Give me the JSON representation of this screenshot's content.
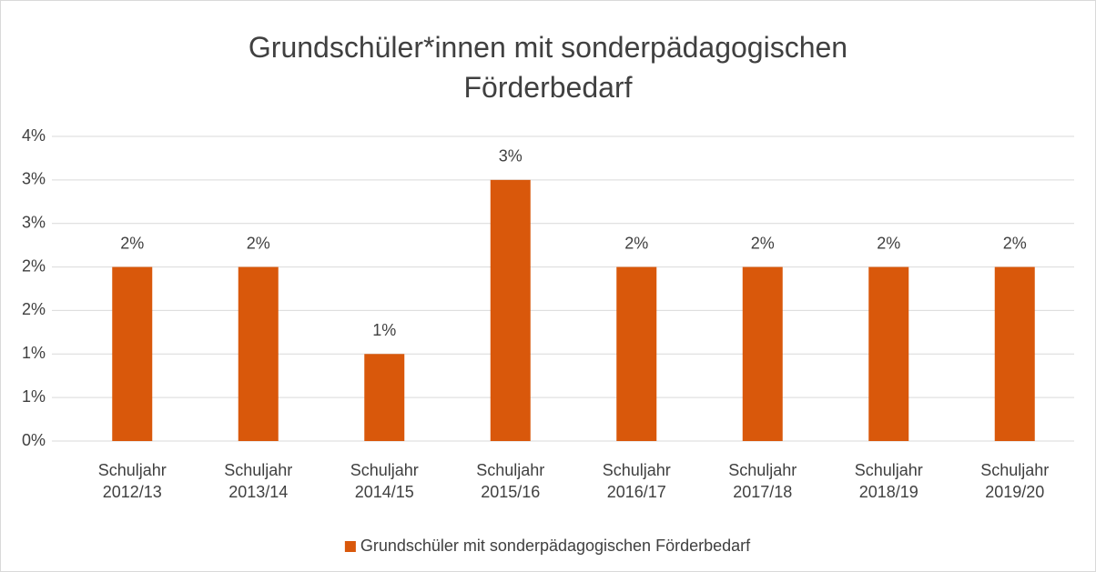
{
  "chart_data": {
    "type": "bar",
    "title": "Grundschüler*innen mit sonderpädagogischen Förderbedarf",
    "categories": [
      "Schuljahr 2012/13",
      "Schuljahr 2013/14",
      "Schuljahr 2014/15",
      "Schuljahr 2015/16",
      "Schuljahr 2016/17",
      "Schuljahr 2017/18",
      "Schuljahr 2018/19",
      "Schuljahr 2019/20"
    ],
    "series": [
      {
        "name": "Grundschüler mit sonderpädagogischen Förderbedarf",
        "color": "#d9580b",
        "values": [
          2,
          2,
          1,
          3,
          2,
          2,
          2,
          2
        ],
        "value_labels": [
          "2%",
          "2%",
          "1%",
          "3%",
          "2%",
          "2%",
          "2%",
          "2%"
        ]
      }
    ],
    "ylim": [
      0,
      3.5
    ],
    "yticks": [
      {
        "value": 0,
        "label": "0%"
      },
      {
        "value": 0.5,
        "label": "1%"
      },
      {
        "value": 1,
        "label": "1%"
      },
      {
        "value": 1.5,
        "label": "2%"
      },
      {
        "value": 2,
        "label": "2%"
      },
      {
        "value": 2.5,
        "label": "3%"
      },
      {
        "value": 3,
        "label": "3%"
      },
      {
        "value": 3.5,
        "label": "4%"
      }
    ],
    "grid": true,
    "legend": "bottom"
  }
}
